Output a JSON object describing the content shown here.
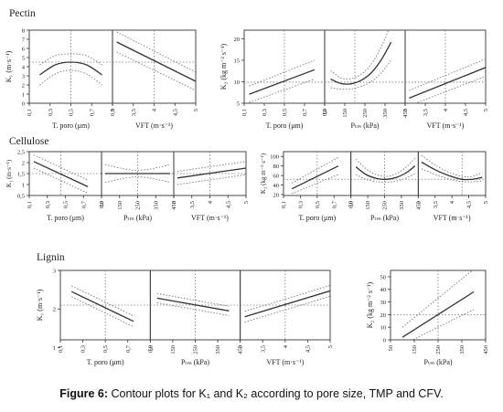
{
  "caption": {
    "label": "Figure 6:",
    "text": "Contour plots for K₁ and K₂ according to pore size, TMP and CFV."
  },
  "colors": {
    "line": "#333333",
    "ci": "#777777",
    "ref": "#777777",
    "frame": "#333333"
  },
  "chart_data": [
    {
      "type": "line",
      "section": "Pectin",
      "ylabel": "K₁ (m·s⁻¹)",
      "yticks": [
        "0",
        "1",
        "2",
        "3",
        "4",
        "5",
        "6",
        "7",
        "8"
      ],
      "ylim": [
        0,
        8
      ],
      "panels": [
        {
          "xlabel": "T. poro (μm)",
          "xticks": [
            "0,1",
            "0,3",
            "0,5",
            "0,7",
            "0,9"
          ],
          "xlim": [
            0.1,
            0.9
          ],
          "x": [
            0.2,
            0.35,
            0.5,
            0.65,
            0.8
          ],
          "y": [
            3.1,
            4.2,
            4.5,
            4.2,
            3.1
          ],
          "ci_lower": [
            2.0,
            3.2,
            3.6,
            3.2,
            2.0
          ],
          "ci_upper": [
            4.2,
            5.2,
            5.4,
            5.2,
            4.2
          ],
          "ref_x": 0.5,
          "ref_y": 4.5
        },
        {
          "xlabel": "VFT (m·s⁻¹)",
          "xticks": [
            "3",
            "3,5",
            "4",
            "4,5",
            "5"
          ],
          "xlim": [
            3,
            5
          ],
          "x": [
            3.1,
            5.0
          ],
          "y": [
            6.7,
            2.4
          ],
          "ci_lower": [
            5.6,
            1.4
          ],
          "ci_upper": [
            7.8,
            3.4
          ],
          "ref_x": 4,
          "ref_y": 4.5
        }
      ]
    },
    {
      "type": "line",
      "section": "Pectin",
      "ylabel": "K₂ (kg m⁻² s⁻¹)",
      "yticks": [
        "5",
        "10",
        "15",
        "20"
      ],
      "ylim": [
        5,
        22
      ],
      "panels": [
        {
          "xlabel": "T. poro (μm)",
          "xticks": [
            "0,1",
            "0,3",
            "0,5",
            "0,7",
            "0,9"
          ],
          "xlim": [
            0.1,
            0.9
          ],
          "x": [
            0.15,
            0.8
          ],
          "y": [
            7.1,
            12.8
          ],
          "ci_lower": [
            5.2,
            10.6
          ],
          "ci_upper": [
            9.0,
            15.0
          ],
          "ref_x": 0.5,
          "ref_y": 9.9
        },
        {
          "xlabel": "Pₜₘ (kPa)",
          "xticks": [
            "50",
            "150",
            "250",
            "350",
            "450"
          ],
          "xlim": [
            50,
            450
          ],
          "x": [
            80,
            130,
            180,
            230,
            280,
            330,
            380
          ],
          "y": [
            10.6,
            9.6,
            9.5,
            10.3,
            12.0,
            15.0,
            19.2
          ],
          "ci_lower": [
            8.6,
            8.3,
            8.3,
            8.9,
            10.0,
            12.0,
            15.0
          ],
          "ci_upper": [
            12.6,
            10.9,
            10.7,
            11.7,
            14.0,
            18.0,
            23.4
          ],
          "ref_x": 200,
          "ref_y": 9.9
        },
        {
          "xlabel": "VFT (m·s⁻¹)",
          "xticks": [
            "3",
            "3,5",
            "4",
            "4,5",
            "5"
          ],
          "xlim": [
            3,
            5
          ],
          "x": [
            3.1,
            5.0
          ],
          "y": [
            6.2,
            13.3
          ],
          "ci_lower": [
            4.4,
            11.3
          ],
          "ci_upper": [
            8.0,
            15.3
          ],
          "ref_x": 4,
          "ref_y": 9.9
        }
      ]
    },
    {
      "type": "line",
      "section": "Cellulose",
      "ylabel": "K₁ (m·s⁻¹)",
      "yticks": [
        "0,5",
        "1",
        "1,5",
        "2",
        "2,5"
      ],
      "ylim": [
        0.5,
        2.5
      ],
      "panels": [
        {
          "xlabel": "T. poro (μm)",
          "xticks": [
            "0,1",
            "0,3",
            "0,5",
            "0,7",
            "0,9"
          ],
          "xlim": [
            0.1,
            0.9
          ],
          "x": [
            0.15,
            0.75
          ],
          "y": [
            2.05,
            0.9
          ],
          "ci_lower": [
            1.75,
            0.6
          ],
          "ci_upper": [
            2.35,
            1.2
          ],
          "ref_x": 0.45,
          "ref_y": 1.5
        },
        {
          "xlabel": "Pₜₘ (kPa)",
          "xticks": [
            "50",
            "150",
            "250",
            "350",
            "450"
          ],
          "xlim": [
            50,
            450
          ],
          "x": [
            70,
            250,
            430
          ],
          "y": [
            1.5,
            1.5,
            1.5
          ],
          "ci_lower": [
            1.1,
            1.35,
            1.1
          ],
          "ci_upper": [
            1.9,
            1.65,
            1.9
          ],
          "ref_x": 250,
          "ref_y": 1.5
        },
        {
          "xlabel": "VFT (m·s⁻¹)",
          "xticks": [
            "3",
            "3,5",
            "4",
            "4,5",
            "5"
          ],
          "xlim": [
            3,
            5
          ],
          "x": [
            3.1,
            5.0
          ],
          "y": [
            1.3,
            1.75
          ],
          "ci_lower": [
            1.0,
            1.45
          ],
          "ci_upper": [
            1.6,
            2.05
          ],
          "ref_x": 4,
          "ref_y": 1.5
        }
      ]
    },
    {
      "type": "line",
      "section": "Cellulose",
      "ylabel": "K₂ (kg m⁻² s⁻¹)",
      "yticks": [
        "20",
        "40",
        "60",
        "80",
        "100"
      ],
      "ylim": [
        18,
        110
      ],
      "panels": [
        {
          "xlabel": "T. poro (μm)",
          "xticks": [
            "0,1",
            "0,3",
            "0,5",
            "0,7",
            "0,9"
          ],
          "xlim": [
            0.1,
            0.9
          ],
          "x": [
            0.2,
            0.75
          ],
          "y": [
            32,
            80
          ],
          "ci_lower": [
            22,
            62
          ],
          "ci_upper": [
            44,
            98
          ],
          "ref_x": 0.5,
          "ref_y": 52
        },
        {
          "xlabel": "Pₜₘ (kPa)",
          "xticks": [
            "50",
            "150",
            "250",
            "350",
            "450"
          ],
          "xlim": [
            50,
            450
          ],
          "x": [
            80,
            140,
            200,
            260,
            320,
            380,
            430
          ],
          "y": [
            78,
            62,
            54,
            52,
            56,
            66,
            80
          ],
          "ci_lower": [
            62,
            52,
            47,
            46,
            48,
            55,
            64
          ],
          "ci_upper": [
            94,
            74,
            62,
            58,
            64,
            78,
            96
          ],
          "ref_x": 250,
          "ref_y": 52
        },
        {
          "xlabel": "VFT (m·s⁻¹)",
          "xticks": [
            "3",
            "3,5",
            "4",
            "4,5",
            "5"
          ],
          "xlim": [
            3,
            5
          ],
          "x": [
            3.1,
            3.5,
            3.9,
            4.3,
            4.6,
            4.9
          ],
          "y": [
            88,
            72,
            60,
            52,
            52,
            56
          ],
          "ci_lower": [
            74,
            62,
            53,
            47,
            47,
            48
          ],
          "ci_upper": [
            102,
            82,
            67,
            58,
            58,
            66
          ],
          "ref_x": 4.3,
          "ref_y": 52
        }
      ]
    },
    {
      "type": "line",
      "section": "Lignin",
      "ylabel": "K₁ (m·s⁻¹)",
      "yticks": [
        "1",
        "2",
        "3"
      ],
      "ylim": [
        1.2,
        3.0
      ],
      "panels": [
        {
          "xlabel": "T. poro (μm)",
          "xticks": [
            "0,1",
            "0,3",
            "0,5",
            "0,7",
            "0,9"
          ],
          "xlim": [
            0.1,
            0.9
          ],
          "x": [
            0.2,
            0.75
          ],
          "y": [
            2.45,
            1.68
          ],
          "ci_lower": [
            2.32,
            1.54
          ],
          "ci_upper": [
            2.6,
            1.82
          ],
          "ref_x": 0.5,
          "ref_y": 2.1
        },
        {
          "xlabel": "Pₜₘ (kPa)",
          "xticks": [
            "50",
            "150",
            "250",
            "350",
            "450"
          ],
          "xlim": [
            50,
            450
          ],
          "x": [
            80,
            400
          ],
          "y": [
            2.28,
            1.95
          ],
          "ci_lower": [
            2.16,
            1.83
          ],
          "ci_upper": [
            2.4,
            2.07
          ],
          "ref_x": 250,
          "ref_y": 2.1
        },
        {
          "xlabel": "VFT (m·s⁻¹)",
          "xticks": [
            "3",
            "3,5",
            "4",
            "4,5",
            "5"
          ],
          "xlim": [
            3,
            5
          ],
          "x": [
            3.1,
            5.0
          ],
          "y": [
            1.8,
            2.47
          ],
          "ci_lower": [
            1.66,
            2.33
          ],
          "ci_upper": [
            1.94,
            2.61
          ],
          "ref_x": 4,
          "ref_y": 2.1
        }
      ]
    },
    {
      "type": "line",
      "section": "Lignin",
      "ylabel": "K₂ (kg m⁻² s⁻¹)",
      "yticks": [
        "0",
        "10",
        "20",
        "30",
        "40",
        "50"
      ],
      "ylim": [
        0,
        55
      ],
      "panels": [
        {
          "xlabel": "Pₜₘ (kPa)",
          "xticks": [
            "50",
            "150",
            "250",
            "350",
            "450"
          ],
          "xlim": [
            50,
            450
          ],
          "x": [
            100,
            400
          ],
          "y": [
            2,
            38
          ],
          "ci_lower": [
            -4,
            24
          ],
          "ci_upper": [
            10,
            56
          ],
          "ref_x": 250,
          "ref_y": 20
        }
      ]
    }
  ]
}
